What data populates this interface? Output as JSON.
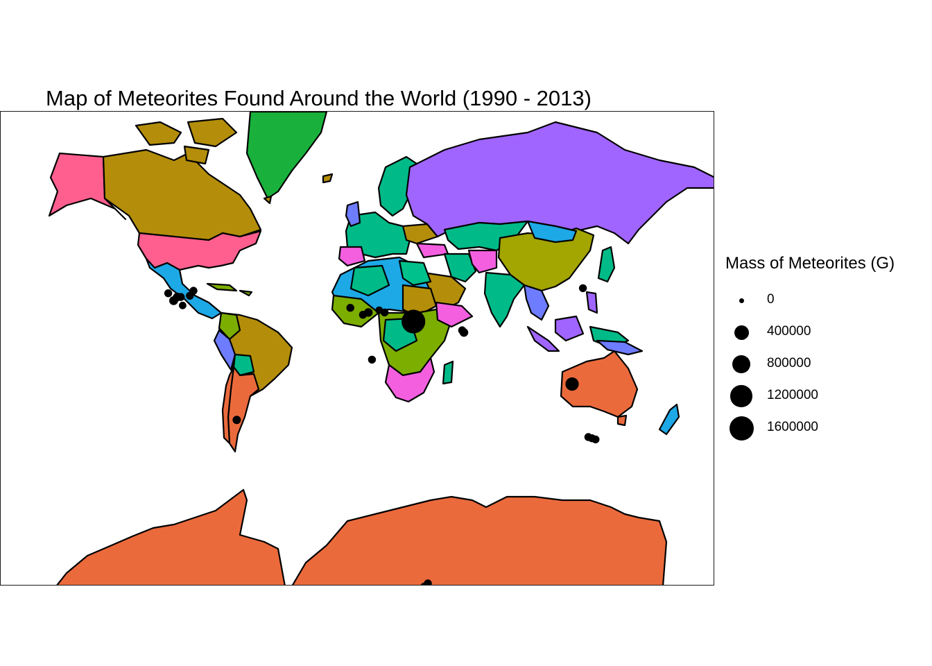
{
  "chart_data": {
    "type": "map",
    "title": "Map of Meteorites Found Around the World (1990 - 2013)",
    "xlabel": "",
    "ylabel": "",
    "grid": false,
    "legend_position": "right",
    "legend": {
      "title": "Mass of Meteorites (G)",
      "entries": [
        {
          "label": "0",
          "value": 0
        },
        {
          "label": "400000",
          "value": 400000
        },
        {
          "label": "800000",
          "value": 800000
        },
        {
          "label": "1200000",
          "value": 1200000
        },
        {
          "label": "1600000",
          "value": 1600000
        }
      ]
    },
    "fill_colors": [
      "#F8766D",
      "#ED8141",
      "#CF9400",
      "#B79F00",
      "#7CAE00",
      "#00BA38",
      "#00C08B",
      "#00BFC4",
      "#00A9FF",
      "#619CFF",
      "#C77CFF",
      "#F564E3",
      "#FF61C3",
      "#A3A500"
    ],
    "points": [
      {
        "lon": -109,
        "lat": 36,
        "mass": 40000
      },
      {
        "lon": -104,
        "lat": 34.5,
        "mass": 60000
      },
      {
        "lon": -106,
        "lat": 33,
        "mass": 70000
      },
      {
        "lon": -102,
        "lat": 34.5,
        "mass": 40000
      },
      {
        "lon": -97,
        "lat": 35,
        "mass": 40000
      },
      {
        "lon": -95,
        "lat": 37,
        "mass": 40000
      },
      {
        "lon": -101,
        "lat": 31,
        "mass": 30000
      },
      {
        "lon": -71,
        "lat": -23,
        "mass": 50000
      },
      {
        "lon": -8,
        "lat": 30,
        "mass": 40000
      },
      {
        "lon": -1,
        "lat": 27,
        "mass": 40000
      },
      {
        "lon": 2,
        "lat": 28,
        "mass": 60000
      },
      {
        "lon": 8,
        "lat": 29,
        "mass": 30000
      },
      {
        "lon": 11,
        "lat": 28,
        "mass": 40000
      },
      {
        "lon": 27,
        "lat": 24,
        "mass": 1500000
      },
      {
        "lon": 55,
        "lat": 19,
        "mass": 60000
      },
      {
        "lon": 54,
        "lat": 20,
        "mass": 40000
      },
      {
        "lon": 4,
        "lat": 6,
        "mass": 40000
      },
      {
        "lon": 121,
        "lat": 38,
        "mass": 40000
      },
      {
        "lon": 115,
        "lat": -6,
        "mass": 300000
      },
      {
        "lon": 124,
        "lat": -30.5,
        "mass": 40000
      },
      {
        "lon": 126,
        "lat": -31,
        "mass": 40000
      },
      {
        "lon": 128,
        "lat": -31.5,
        "mass": 40000
      },
      {
        "lon": 33,
        "lat": -72,
        "mass": 40000
      },
      {
        "lon": 35,
        "lat": -71.5,
        "mass": 40000
      },
      {
        "lon": 78,
        "lat": -72.5,
        "mass": 40000
      },
      {
        "lon": 158,
        "lat": -72.5,
        "mass": 40000
      },
      {
        "lon": 156,
        "lat": -76,
        "mass": 40000
      },
      {
        "lon": 157,
        "lat": -77,
        "mass": 40000
      },
      {
        "lon": 155,
        "lat": -79,
        "mass": 40000
      },
      {
        "lon": 156,
        "lat": -82,
        "mass": 40000
      }
    ]
  }
}
